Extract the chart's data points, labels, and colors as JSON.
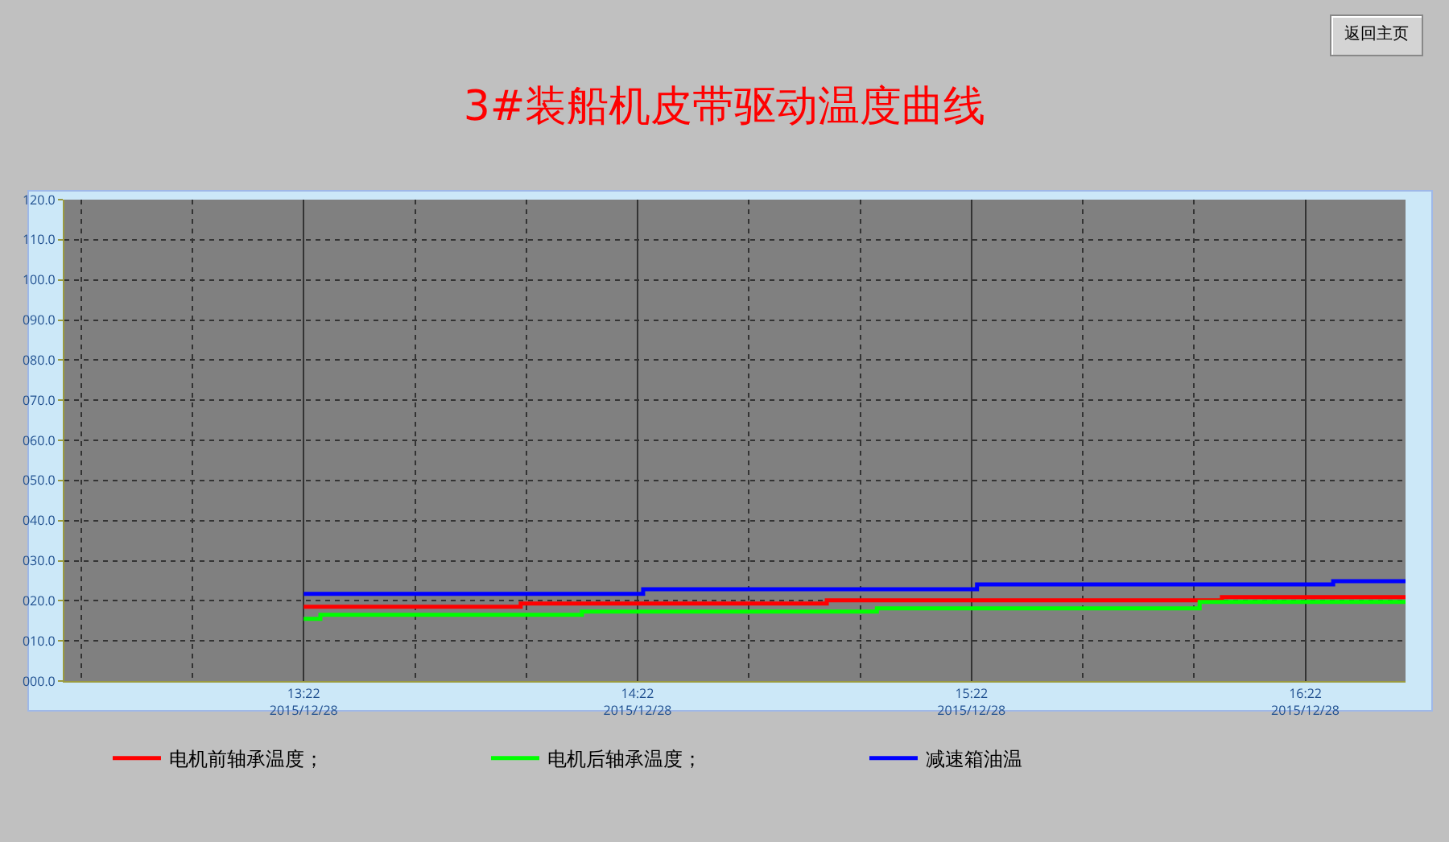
{
  "chart_data": {
    "type": "step",
    "title": "3#装船机皮带驱动温度曲线",
    "annotations": [
      "返回主页"
    ],
    "xlim": [
      "2015-12-28T12:39",
      "2015-12-28T16:40"
    ],
    "xticks": [
      {
        "value": "2015-12-28T13:22",
        "label": "13:22\n2015/12/28"
      },
      {
        "value": "2015-12-28T14:22",
        "label": "14:22\n2015/12/28"
      },
      {
        "value": "2015-12-28T15:22",
        "label": "15:22\n2015/12/28"
      },
      {
        "value": "2015-12-28T16:22",
        "label": "16:22\n2015/12/28"
      }
    ],
    "ylim": [
      0,
      120
    ],
    "yticks": [
      {
        "value": 0,
        "label": "000.0"
      },
      {
        "value": 10,
        "label": "010.0"
      },
      {
        "value": 20,
        "label": "020.0"
      },
      {
        "value": 30,
        "label": "030.0"
      },
      {
        "value": 40,
        "label": "040.0"
      },
      {
        "value": 50,
        "label": "050.0"
      },
      {
        "value": 60,
        "label": "060.0"
      },
      {
        "value": 70,
        "label": "070.0"
      },
      {
        "value": 80,
        "label": "080.0"
      },
      {
        "value": 90,
        "label": "090.0"
      },
      {
        "value": 100,
        "label": "100.0"
      },
      {
        "value": 110,
        "label": "110.0"
      },
      {
        "value": 120,
        "label": "120.0"
      }
    ],
    "grid": true,
    "legend": "bottom",
    "marker": "none",
    "line_style": "solid",
    "series": [
      {
        "name": "电机前轴承温度；",
        "color": "#ff0000",
        "x": [
          "2015-12-28T13:22",
          "2015-12-28T14:01",
          "2015-12-28T14:56",
          "2015-12-28T16:07",
          "2015-12-28T16:40"
        ],
        "values": [
          18.5,
          19.3,
          20.1,
          20.9,
          20.9
        ]
      },
      {
        "name": "电机后轴承温度；",
        "color": "#00ff00",
        "x": [
          "2015-12-28T13:22",
          "2015-12-28T13:25",
          "2015-12-28T14:12",
          "2015-12-28T15:05",
          "2015-12-28T16:03",
          "2015-12-28T16:40"
        ],
        "values": [
          15.5,
          16.5,
          17.3,
          18.1,
          19.7,
          19.7
        ]
      },
      {
        "name": "减速箱油温",
        "color": "#0000ff",
        "x": [
          "2015-12-28T13:22",
          "2015-12-28T14:23",
          "2015-12-28T15:23",
          "2015-12-28T16:27",
          "2015-12-28T16:40"
        ],
        "values": [
          21.7,
          22.9,
          24.1,
          24.9,
          24.9
        ]
      }
    ]
  }
}
